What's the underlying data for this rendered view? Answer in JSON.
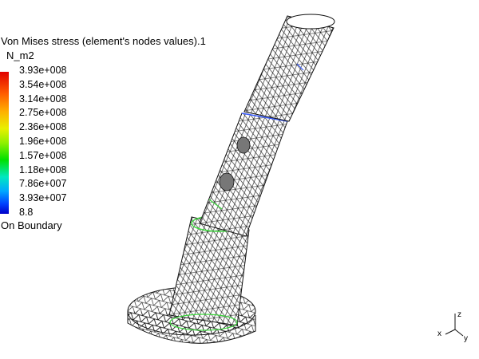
{
  "legend": {
    "title": "Von Mises stress (element's nodes values).1",
    "unit": "N_m2",
    "ticks": [
      "3.93e+008",
      "3.54e+008",
      "3.14e+008",
      "2.75e+008",
      "2.36e+008",
      "1.96e+008",
      "1.57e+008",
      "1.18e+008",
      "7.86e+007",
      "3.93e+007",
      "8.8"
    ],
    "boundary_label": "On Boundary"
  },
  "axis": {
    "x": "x",
    "y": "y",
    "z": "z"
  },
  "colors": {
    "mesh": "#111111",
    "background": "#ffffff",
    "highlight_green": "#3cd83c",
    "highlight_blue": "#3a5cff"
  }
}
